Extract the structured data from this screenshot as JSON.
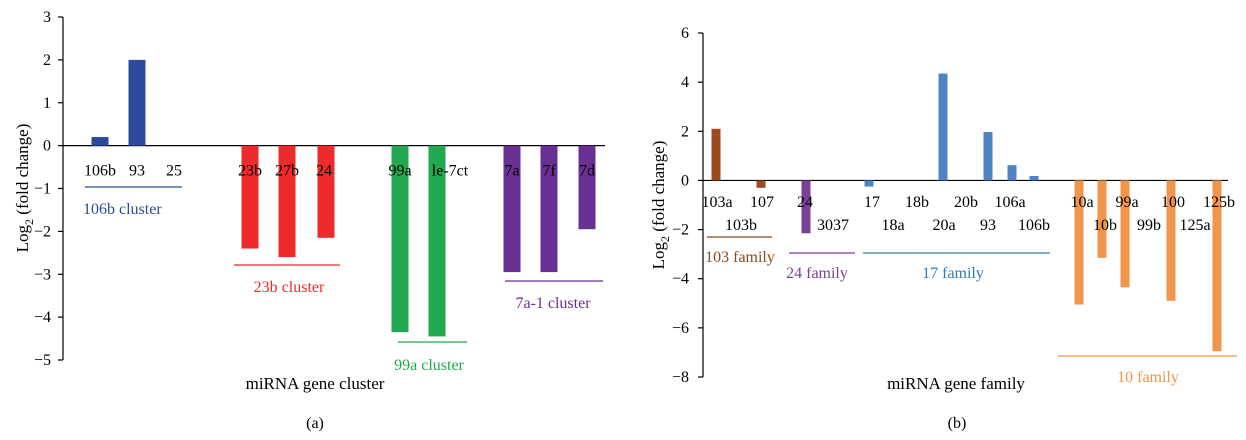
{
  "chart_data": [
    {
      "type": "bar",
      "panel_label": "(a)",
      "xlabel": "miRNA gene cluster",
      "ylabel": "Log2 (fold change)",
      "ylabel_main": "Log",
      "ylabel_sub": "2",
      "ylabel_rest": " (fold change)",
      "ylim": [
        -5,
        3
      ],
      "yticks": [
        "3",
        "2",
        "1",
        "0",
        "−1",
        "−2",
        "−3",
        "−4",
        "−5"
      ],
      "grid": false,
      "categories": [
        "106b",
        "93",
        "25",
        "23b",
        "27b",
        "24",
        "99a",
        "le-7ct",
        "7a",
        "7f",
        "7d"
      ],
      "series": [
        {
          "values": [
            0.2,
            2.0,
            0,
            -2.4,
            -2.6,
            -2.15,
            -4.35,
            -4.45,
            -2.95,
            -2.95,
            -1.95
          ]
        }
      ],
      "groups": [
        {
          "label": "106b cluster",
          "color": "#2e4a9e",
          "members": [
            "106b",
            "93",
            "25"
          ]
        },
        {
          "label": "23b cluster",
          "color": "#ee2a2a",
          "members": [
            "23b",
            "27b",
            "24"
          ]
        },
        {
          "label": "99a cluster",
          "color": "#22a94f",
          "members": [
            "99a",
            "le-7ct"
          ]
        },
        {
          "label": "7a-1 cluster",
          "color": "#6a2f93",
          "members": [
            "7a",
            "7f",
            "7d"
          ]
        }
      ]
    },
    {
      "type": "bar",
      "panel_label": "(b)",
      "xlabel": "miRNA gene family",
      "ylabel": "Log2 (fold change)",
      "ylabel_main": "Log",
      "ylabel_sub": "2",
      "ylabel_rest": " (fold change)",
      "ylim": [
        -8,
        6
      ],
      "yticks": [
        "6",
        "4",
        "2",
        "0",
        "−2",
        "−4",
        "−6",
        "−8"
      ],
      "grid": false,
      "categories": [
        "103a",
        "103b",
        "107",
        "24",
        "3037",
        "17",
        "18a",
        "18b",
        "20a",
        "20b",
        "93",
        "106a",
        "106b",
        "10a",
        "10b",
        "99a",
        "99b",
        "100",
        "125a",
        "125b"
      ],
      "series": [
        {
          "values": [
            2.1,
            0,
            -0.3,
            -2.15,
            0,
            0,
            -0.25,
            0,
            4.35,
            0,
            1.97,
            0.62,
            0.18,
            -5.05,
            -3.15,
            -4.35,
            0,
            -4.9,
            0,
            -6.95
          ]
        }
      ],
      "groups": [
        {
          "label": "103 family",
          "color": "#8b4a1e",
          "members": [
            "103a",
            "103b",
            "107"
          ]
        },
        {
          "label": "24 family",
          "color": "#7b3f98",
          "members": [
            "24",
            "3037"
          ]
        },
        {
          "label": "17 family",
          "color": "#2f7ab8",
          "members": [
            "17",
            "18a",
            "18b",
            "20a",
            "20b",
            "93",
            "106a",
            "106b"
          ]
        },
        {
          "label": "10 family",
          "color": "#f0954a",
          "members": [
            "10a",
            "10b",
            "99a",
            "99b",
            "100",
            "125a",
            "125b"
          ]
        }
      ],
      "bar_colors": {
        "103 family": "#9a4a1e",
        "24 family": "#7b3f98",
        "17 family": "#4f84c4",
        "10 family": "#f0954a"
      }
    }
  ]
}
